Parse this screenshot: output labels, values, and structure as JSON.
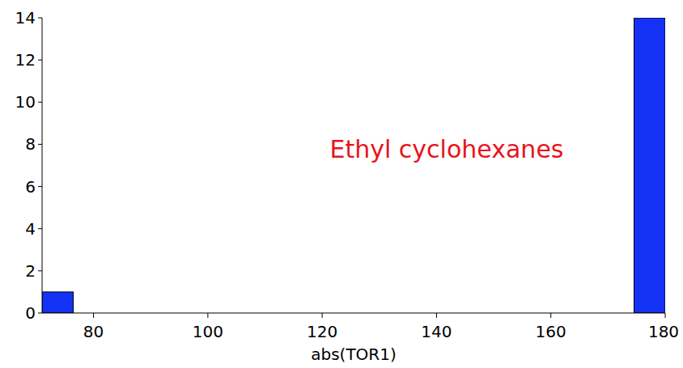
{
  "chart_data": {
    "type": "histogram",
    "x_label": "abs(TOR1)",
    "annotation": "Ethyl cyclohexanes",
    "bins": [
      71,
      76.45,
      81.9,
      87.35,
      92.8,
      98.25,
      103.7,
      109.15,
      114.6,
      120.05,
      125.5,
      130.95,
      136.4,
      141.85,
      147.3,
      152.75,
      158.2,
      163.65,
      169.1,
      174.55,
      180
    ],
    "values": [
      1,
      0,
      0,
      0,
      0,
      0,
      0,
      0,
      0,
      0,
      0,
      0,
      0,
      0,
      0,
      0,
      0,
      0,
      0,
      14
    ],
    "color": "#1432f5",
    "xlim": [
      71,
      180
    ],
    "xticks": [
      80,
      100,
      120,
      140,
      160,
      180
    ],
    "ylim": [
      0,
      14
    ],
    "yticks": [
      0,
      2,
      4,
      6,
      8,
      10,
      12,
      14
    ],
    "grid": false
  }
}
